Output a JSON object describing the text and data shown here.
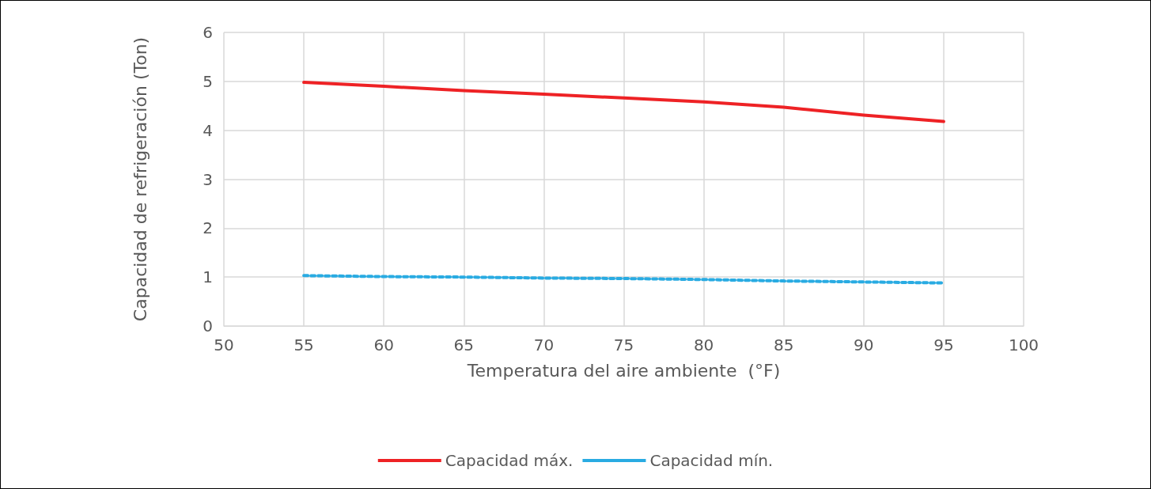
{
  "chart_data": {
    "type": "line",
    "xlabel": "Temperatura del aire ambiente  (°F)",
    "ylabel": "Capacidad de refrigeración (Ton)",
    "x": [
      55,
      60,
      65,
      70,
      75,
      80,
      85,
      90,
      95
    ],
    "series": [
      {
        "name": "Capacidad máx.",
        "color": "#ee2225",
        "line_style": "solid",
        "values": [
          4.98,
          4.9,
          4.81,
          4.74,
          4.66,
          4.58,
          4.47,
          4.31,
          4.18
        ]
      },
      {
        "name": "Capacidad mín.",
        "color": "#29abe2",
        "line_style": "dashed",
        "values": [
          1.03,
          1.01,
          1.0,
          0.98,
          0.97,
          0.95,
          0.92,
          0.9,
          0.88
        ]
      }
    ],
    "xlim": [
      50,
      100
    ],
    "xticks": [
      50,
      55,
      60,
      65,
      70,
      75,
      80,
      85,
      90,
      95,
      100
    ],
    "ylim": [
      0,
      6
    ],
    "yticks": [
      0,
      1,
      2,
      3,
      4,
      5,
      6
    ],
    "grid": true,
    "legend": "bottom",
    "marker": "none"
  }
}
